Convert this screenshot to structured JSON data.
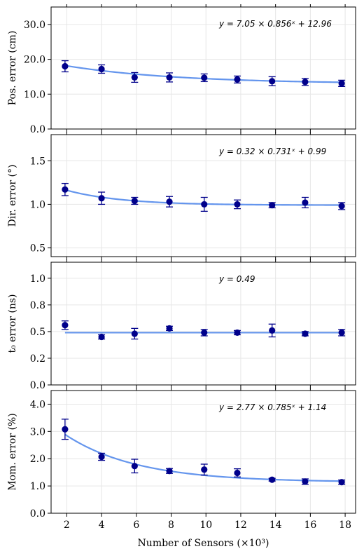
{
  "colors": {
    "point": "#00008b",
    "fit": "#6495ed",
    "grid": "#e6e6e6",
    "axis": "#000000"
  },
  "chart_data": [
    {
      "type": "scatter",
      "panel_id": "pos",
      "ylabel": "Pos. error (cm)",
      "xlabel": "",
      "ylim": [
        0,
        35
      ],
      "xlim": [
        1.1,
        18.6
      ],
      "yticks": [
        0,
        10,
        20,
        30
      ],
      "ytick_labels": [
        "0.0",
        "10.0",
        "20.0",
        "30.0"
      ],
      "xticks": [
        2,
        4,
        6,
        8,
        10,
        12,
        14,
        16,
        18
      ],
      "grid": true,
      "x": [
        1.9,
        4.0,
        5.9,
        7.9,
        9.9,
        11.8,
        13.8,
        15.7,
        17.8
      ],
      "y": [
        18.0,
        17.2,
        14.8,
        14.8,
        14.7,
        14.2,
        13.7,
        13.5,
        13.1
      ],
      "yerr": [
        1.6,
        1.2,
        1.4,
        1.3,
        1.1,
        1.0,
        1.3,
        1.0,
        0.9
      ],
      "fit": {
        "a": 7.05,
        "b": 0.856,
        "c": 12.96,
        "label": "y = 7.05 × 0.856ˣ + 12.96"
      }
    },
    {
      "type": "scatter",
      "panel_id": "dir",
      "ylabel": "Dir. error (°)",
      "xlabel": "",
      "ylim": [
        0.4,
        1.8
      ],
      "xlim": [
        1.1,
        18.6
      ],
      "yticks": [
        0.5,
        1.0,
        1.5
      ],
      "ytick_labels": [
        "0.5",
        "1.0",
        "1.5"
      ],
      "xticks": [
        2,
        4,
        6,
        8,
        10,
        12,
        14,
        16,
        18
      ],
      "grid": true,
      "x": [
        1.9,
        4.0,
        5.9,
        7.9,
        9.9,
        11.8,
        13.8,
        15.7,
        17.8
      ],
      "y": [
        1.17,
        1.07,
        1.04,
        1.03,
        1.0,
        1.0,
        0.99,
        1.02,
        0.98
      ],
      "yerr": [
        0.07,
        0.07,
        0.04,
        0.06,
        0.08,
        0.05,
        0.03,
        0.06,
        0.04
      ],
      "fit": {
        "a": 0.32,
        "b": 0.731,
        "c": 0.99,
        "label": "y = 0.32 × 0.731ˣ + 0.99"
      }
    },
    {
      "type": "scatter",
      "panel_id": "t0",
      "ylabel": "t₀ error (ns)",
      "xlabel": "",
      "ylim": [
        0,
        1.15
      ],
      "xlim": [
        1.1,
        18.6
      ],
      "yticks": [
        0.0,
        0.25,
        0.5,
        0.75,
        1.0
      ],
      "ytick_labels": [
        "0.0",
        "0.2",
        "0.5",
        "0.8",
        "1.0"
      ],
      "xticks": [
        2,
        4,
        6,
        8,
        10,
        12,
        14,
        16,
        18
      ],
      "grid": true,
      "x": [
        1.9,
        4.0,
        5.9,
        7.9,
        9.9,
        11.8,
        13.8,
        15.7,
        17.8
      ],
      "y": [
        0.56,
        0.45,
        0.48,
        0.53,
        0.49,
        0.49,
        0.51,
        0.48,
        0.49
      ],
      "yerr": [
        0.04,
        0.02,
        0.05,
        0.02,
        0.03,
        0.02,
        0.06,
        0.02,
        0.03
      ],
      "fit": {
        "a": 0,
        "b": 1,
        "c": 0.49,
        "label": "y = 0.49"
      }
    },
    {
      "type": "scatter",
      "panel_id": "mom",
      "ylabel": "Mom. error (%)",
      "xlabel": "Number of Sensors (×10³)",
      "ylim": [
        0,
        4.5
      ],
      "xlim": [
        1.1,
        18.6
      ],
      "yticks": [
        0,
        1,
        2,
        3,
        4
      ],
      "ytick_labels": [
        "0.0",
        "1.0",
        "2.0",
        "3.0",
        "4.0"
      ],
      "xticks": [
        2,
        4,
        6,
        8,
        10,
        12,
        14,
        16,
        18
      ],
      "xtick_labels": [
        "2",
        "4",
        "6",
        "8",
        "10",
        "12",
        "14",
        "16",
        "18"
      ],
      "grid": true,
      "x": [
        1.9,
        4.0,
        5.9,
        7.9,
        9.9,
        11.8,
        13.8,
        15.7,
        17.8
      ],
      "y": [
        3.08,
        2.07,
        1.73,
        1.55,
        1.6,
        1.48,
        1.23,
        1.16,
        1.14
      ],
      "yerr": [
        0.37,
        0.13,
        0.25,
        0.09,
        0.2,
        0.15,
        0.05,
        0.1,
        0.08
      ],
      "fit": {
        "a": 2.77,
        "b": 0.785,
        "c": 1.14,
        "label": "y = 2.77 × 0.785ˣ + 1.14"
      }
    }
  ]
}
